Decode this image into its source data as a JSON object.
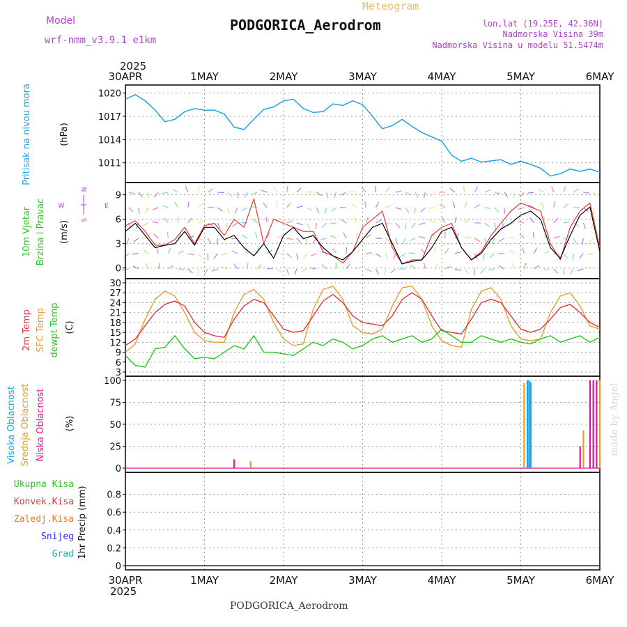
{
  "header": {
    "model_label": "Model",
    "model_name": "wrf-nmm_v3.9.1 e1km",
    "station_title": "PODGORICA_Aerodrom",
    "meteogram_label": "Meteogram",
    "lonlat": "lon,lat (19.25E, 42.36N)",
    "altitude": "Nadmorska Visina 39m",
    "model_altitude": "Nadmorska Visina u modelu 51.5474m",
    "year_label": "2025",
    "footer_station": "PODGORICA_Aerodrom",
    "watermark": "made by Angel"
  },
  "colors": {
    "pressure": "#1ba4e4",
    "wind_black": "#000000",
    "wind_red": "#e8343c",
    "temp2m": "#e8343c",
    "sfc_temp": "#e0a030",
    "dewpt": "#22c81e",
    "high_cloud": "#1ba4e4",
    "mid_cloud": "#e0a030",
    "low_cloud": "#e0109c",
    "precip_total": "#22c81e",
    "precip_conv": "#e8343c",
    "precip_frozen": "#f07828",
    "snow": "#2a2ae0",
    "grad": "#18b8b0",
    "grid": "#9a9a9a",
    "header_purple": "#b040d0",
    "header_gold": "#e8c070"
  },
  "chart_data": [
    {
      "type": "line",
      "panel": "pressure",
      "ylabel_lines": [
        "Pritisak na nivou mora",
        "(hPa)"
      ],
      "ylim": [
        1009,
        1020.5
      ],
      "yticks": [
        1011,
        1014,
        1017,
        1020
      ],
      "x_day_labels": [
        "30APR",
        "1MAY",
        "2MAY",
        "3MAY",
        "4MAY",
        "5MAY",
        "6MAY"
      ],
      "grid": true,
      "series": [
        {
          "x_hours": [
            0,
            3,
            6,
            9,
            12,
            15,
            18,
            21,
            24,
            27,
            30,
            33,
            36,
            42,
            45,
            48,
            51,
            54,
            57,
            60,
            63,
            66,
            69,
            72,
            75,
            78,
            81,
            84,
            87,
            90,
            96,
            99,
            102,
            105,
            108,
            114,
            117,
            120,
            123,
            126,
            129,
            132,
            135,
            138,
            141,
            144
          ],
          "values": [
            1019.2,
            1019.8,
            1019.0,
            1017.8,
            1016.3,
            1016.6,
            1017.6,
            1018.0,
            1017.8,
            1017.8,
            1017.3,
            1015.6,
            1015.3,
            1017.9,
            1018.2,
            1019.0,
            1019.2,
            1018.0,
            1017.5,
            1017.6,
            1018.6,
            1018.4,
            1019.0,
            1018.5,
            1017.0,
            1015.4,
            1015.8,
            1016.6,
            1015.7,
            1014.9,
            1013.8,
            1012.0,
            1011.2,
            1011.6,
            1011.1,
            1011.4,
            1010.8,
            1011.2,
            1010.8,
            1010.3,
            1009.3,
            1009.6,
            1010.2,
            1009.9,
            1010.2,
            1009.8
          ]
        }
      ]
    },
    {
      "type": "line",
      "panel": "wind",
      "ylabel_lines": [
        "10m Vjetar",
        "Brzina i Pravac",
        "(m/s)"
      ],
      "compass": [
        "N",
        "W",
        "E",
        "S"
      ],
      "ylim": [
        -0.8,
        10
      ],
      "yticks": [
        0,
        3,
        6,
        9
      ],
      "grid": true,
      "series": [
        {
          "name": "black",
          "x_hours": [
            0,
            3,
            6,
            9,
            12,
            15,
            18,
            21,
            24,
            27,
            30,
            33,
            36,
            39,
            42,
            45,
            48,
            51,
            54,
            57,
            60,
            63,
            66,
            69,
            72,
            75,
            78,
            81,
            84,
            87,
            90,
            93,
            96,
            99,
            102,
            105,
            108,
            111,
            114,
            117,
            120,
            123,
            126,
            129,
            132,
            135,
            138,
            141,
            144
          ],
          "values": [
            4.5,
            5.5,
            4.0,
            2.5,
            2.8,
            3.0,
            4.5,
            2.8,
            5.0,
            5.0,
            3.5,
            4.0,
            2.5,
            1.5,
            3.0,
            1.2,
            4.0,
            5.0,
            3.6,
            4.0,
            2.5,
            1.5,
            1.0,
            2.0,
            3.5,
            5.0,
            5.5,
            3.0,
            0.5,
            0.8,
            1.0,
            2.5,
            4.5,
            5.0,
            2.5,
            1.0,
            1.8,
            3.5,
            4.8,
            5.5,
            6.5,
            7.0,
            6.0,
            2.5,
            1.2,
            4.0,
            6.5,
            7.5,
            2.0
          ]
        },
        {
          "name": "red",
          "x_hours": [
            0,
            3,
            6,
            9,
            12,
            15,
            18,
            21,
            24,
            27,
            30,
            33,
            36,
            39,
            42,
            45,
            48,
            51,
            54,
            57,
            60,
            63,
            66,
            69,
            72,
            75,
            78,
            81,
            84,
            87,
            90,
            93,
            96,
            99,
            102,
            105,
            108,
            111,
            114,
            117,
            120,
            123,
            126,
            129,
            132,
            135,
            138,
            141,
            144
          ],
          "values": [
            5.2,
            5.8,
            4.5,
            2.8,
            2.8,
            3.5,
            5.0,
            3.0,
            5.2,
            5.5,
            4.0,
            6.0,
            5.0,
            8.5,
            3.0,
            6.0,
            5.5,
            5.0,
            4.5,
            4.5,
            2.0,
            1.5,
            0.6,
            2.0,
            5.0,
            6.0,
            7.0,
            2.5,
            0.5,
            1.0,
            1.0,
            4.0,
            5.0,
            5.5,
            2.5,
            1.0,
            2.0,
            4.0,
            5.5,
            7.0,
            8.0,
            7.5,
            7.0,
            3.0,
            1.0,
            5.0,
            7.0,
            8.0,
            2.5
          ]
        }
      ]
    },
    {
      "type": "line",
      "panel": "temperature",
      "ylabel_lines": [
        "2m Temp",
        "SFC Temp",
        "dewpt Temp",
        "(C)"
      ],
      "ylim": [
        3,
        30
      ],
      "yticks": [
        3,
        6,
        9,
        12,
        15,
        18,
        21,
        24,
        27,
        30
      ],
      "grid": true,
      "series": [
        {
          "name": "2m Temp",
          "x_hours": [
            0,
            3,
            6,
            9,
            12,
            15,
            18,
            21,
            24,
            27,
            30,
            33,
            36,
            39,
            42,
            45,
            48,
            51,
            54,
            57,
            60,
            63,
            66,
            69,
            72,
            75,
            78,
            81,
            84,
            87,
            90,
            93,
            96,
            99,
            102,
            105,
            108,
            111,
            114,
            117,
            120,
            123,
            126,
            129,
            132,
            135,
            138,
            141,
            144
          ],
          "values": [
            11,
            13,
            17,
            21,
            23.5,
            24.5,
            23,
            18,
            15,
            14,
            13.5,
            19,
            23,
            25,
            24,
            20,
            16,
            15,
            15.5,
            20,
            24.5,
            26.5,
            24,
            20,
            18,
            17.5,
            17,
            20,
            25,
            27,
            25,
            20,
            15.5,
            15,
            14.5,
            19,
            24,
            25,
            24,
            20,
            16,
            15,
            16,
            19,
            22.5,
            23.5,
            21,
            18,
            16.5
          ]
        },
        {
          "name": "SFC Temp",
          "x_hours": [
            0,
            3,
            6,
            9,
            12,
            15,
            18,
            21,
            24,
            27,
            30,
            33,
            36,
            39,
            42,
            45,
            48,
            51,
            54,
            57,
            60,
            63,
            66,
            69,
            72,
            75,
            78,
            81,
            84,
            87,
            90,
            93,
            96,
            99,
            102,
            105,
            108,
            111,
            114,
            117,
            120,
            123,
            126,
            129,
            132,
            135,
            138,
            141,
            144
          ],
          "values": [
            9,
            11.5,
            19,
            25,
            27.5,
            26,
            21,
            15,
            12.5,
            12,
            12,
            21,
            26.5,
            28,
            25,
            18,
            13,
            11,
            11.5,
            22,
            28,
            29,
            25,
            17,
            15,
            14.5,
            16,
            23,
            28.5,
            29,
            25,
            17,
            12.5,
            11,
            10.5,
            22,
            27.5,
            28.5,
            25,
            17,
            13,
            12.5,
            13,
            21,
            26,
            27,
            23,
            17,
            16
          ]
        },
        {
          "name": "dewpt Temp",
          "x_hours": [
            0,
            3,
            6,
            9,
            12,
            15,
            18,
            21,
            24,
            27,
            30,
            33,
            36,
            39,
            42,
            45,
            48,
            51,
            54,
            57,
            60,
            63,
            66,
            69,
            72,
            75,
            78,
            81,
            84,
            87,
            90,
            93,
            96,
            99,
            102,
            105,
            108,
            111,
            114,
            117,
            120,
            123,
            126,
            129,
            132,
            135,
            138,
            141,
            144
          ],
          "values": [
            8,
            5,
            4.5,
            10,
            10.5,
            14,
            10,
            7,
            7.5,
            7,
            9,
            11,
            10,
            14,
            9,
            9,
            8.5,
            8,
            10,
            12,
            11,
            13,
            12,
            10,
            11,
            13,
            14,
            12,
            13,
            14,
            12,
            13,
            16,
            14,
            12,
            12,
            14,
            13,
            12,
            13,
            12,
            11.5,
            13,
            14,
            12,
            13,
            14,
            12,
            13.5
          ]
        }
      ]
    },
    {
      "type": "bar",
      "panel": "clouds",
      "ylabel_lines": [
        "Visoka Oblacnost",
        "Srednja Oblacnost",
        "Niska Oblacnost",
        "(%)"
      ],
      "ylim": [
        0,
        100
      ],
      "yticks": [
        0,
        25,
        50,
        75,
        100
      ],
      "grid": true,
      "series": [
        {
          "name": "Visoka Oblacnost",
          "x_hours": [
            122,
            122.5,
            123
          ],
          "values": [
            100,
            100,
            98
          ]
        },
        {
          "name": "Srednja Oblacnost",
          "x_hours": [
            38,
            121,
            139,
            144
          ],
          "values": [
            8,
            97,
            43,
            100
          ]
        },
        {
          "name": "Niska Oblacnost",
          "x_hours": [
            33,
            138,
            141,
            142,
            143
          ],
          "values": [
            10,
            25,
            100,
            100,
            100
          ]
        }
      ]
    },
    {
      "type": "bar",
      "panel": "precip",
      "ylabel_lines": [
        "1hr Precip (mm)"
      ],
      "legend": [
        "Ukupna Kisa",
        "Konvek.Kisa",
        "Zaledj.Kisa",
        "Snijeg",
        "Grad"
      ],
      "ylim": [
        0,
        1.0
      ],
      "yticks": [
        0,
        0.2,
        0.4,
        0.6,
        0.8
      ],
      "grid": true,
      "series": [
        {
          "name": "Ukupna Kisa",
          "values": []
        },
        {
          "name": "Konvek.Kisa",
          "values": []
        },
        {
          "name": "Zaledj.Kisa",
          "values": []
        },
        {
          "name": "Snijeg",
          "values": []
        },
        {
          "name": "Grad",
          "values": []
        }
      ]
    }
  ]
}
